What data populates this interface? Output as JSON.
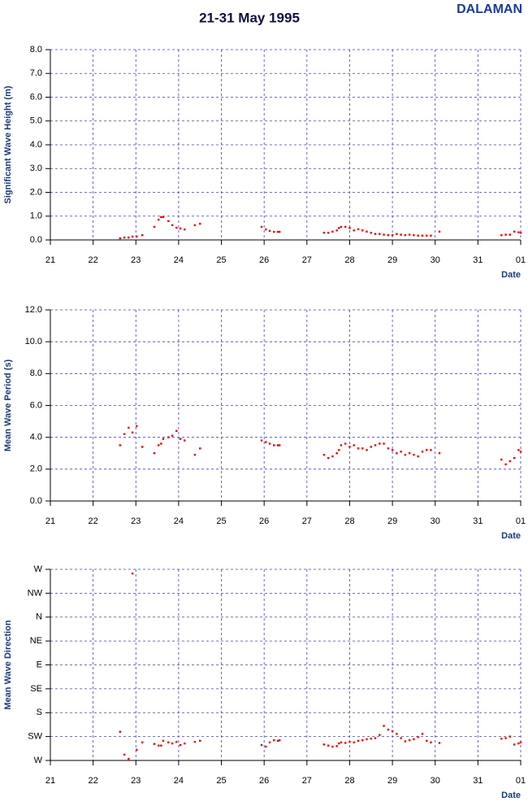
{
  "header": {
    "title": "21-31 May 1995",
    "station": "DALAMAN"
  },
  "chart_data": [
    {
      "type": "scatter",
      "ylabel": "Significant Wave Height (m)",
      "xlabel": "Date",
      "color": "#ee0000",
      "xlim": [
        21,
        32
      ],
      "xticks": [
        21,
        22,
        23,
        24,
        25,
        26,
        27,
        28,
        29,
        30,
        31,
        {
          "value": 32,
          "label": "01"
        }
      ],
      "ylim": [
        0,
        8
      ],
      "yticks": [
        {
          "value": 0,
          "label": "0.0"
        },
        {
          "value": 1,
          "label": "1.0"
        },
        {
          "value": 2,
          "label": "2.0"
        },
        {
          "value": 3,
          "label": "3.0"
        },
        {
          "value": 4,
          "label": "4.0"
        },
        {
          "value": 5,
          "label": "5.0"
        },
        {
          "value": 6,
          "label": "6.0"
        },
        {
          "value": 7,
          "label": "7.0"
        },
        {
          "value": 8,
          "label": "8.0"
        }
      ],
      "grid": true,
      "x": [
        22.63,
        22.73,
        22.83,
        22.92,
        23.02,
        23.15,
        23.43,
        23.53,
        23.59,
        23.64,
        23.76,
        23.85,
        23.95,
        24.04,
        24.14,
        24.38,
        24.5,
        25.94,
        26.04,
        26.13,
        26.23,
        26.32,
        26.36,
        27.4,
        27.5,
        27.6,
        27.7,
        27.75,
        27.8,
        27.9,
        28.0,
        28.1,
        28.2,
        28.3,
        28.4,
        28.5,
        28.6,
        28.7,
        28.8,
        28.9,
        29.0,
        29.1,
        29.2,
        29.3,
        29.4,
        29.5,
        29.6,
        29.7,
        29.8,
        29.9,
        30.1,
        31.55,
        31.65,
        31.75,
        31.85,
        31.95,
        32.0
      ],
      "values": [
        0.07,
        0.1,
        0.1,
        0.14,
        0.14,
        0.2,
        0.55,
        0.85,
        0.96,
        0.96,
        0.79,
        0.62,
        0.51,
        0.48,
        0.44,
        0.62,
        0.68,
        0.55,
        0.44,
        0.38,
        0.34,
        0.34,
        0.34,
        0.3,
        0.3,
        0.35,
        0.4,
        0.5,
        0.55,
        0.55,
        0.5,
        0.4,
        0.45,
        0.4,
        0.35,
        0.3,
        0.25,
        0.25,
        0.22,
        0.2,
        0.2,
        0.25,
        0.22,
        0.2,
        0.22,
        0.2,
        0.18,
        0.18,
        0.18,
        0.18,
        0.35,
        0.2,
        0.22,
        0.22,
        0.35,
        0.32,
        0.3
      ]
    },
    {
      "type": "scatter",
      "ylabel": "Mean Wave Period (s)",
      "xlabel": "Date",
      "color": "#ee0000",
      "xlim": [
        21,
        32
      ],
      "xticks": [
        21,
        22,
        23,
        24,
        25,
        26,
        27,
        28,
        29,
        30,
        31,
        {
          "value": 32,
          "label": "01"
        }
      ],
      "ylim": [
        0,
        12
      ],
      "yticks": [
        {
          "value": 0,
          "label": "0.0"
        },
        {
          "value": 2,
          "label": "2.0"
        },
        {
          "value": 4,
          "label": "4.0"
        },
        {
          "value": 6,
          "label": "6.0"
        },
        {
          "value": 8,
          "label": "8.0"
        },
        {
          "value": 10,
          "label": "10.0"
        },
        {
          "value": 12,
          "label": "12.0"
        }
      ],
      "grid": true,
      "x": [
        22.63,
        22.73,
        22.83,
        22.92,
        23.02,
        23.15,
        23.43,
        23.53,
        23.59,
        23.64,
        23.76,
        23.85,
        23.95,
        24.04,
        24.14,
        24.38,
        24.5,
        25.94,
        26.04,
        26.13,
        26.23,
        26.32,
        26.36,
        27.4,
        27.5,
        27.6,
        27.7,
        27.75,
        27.8,
        27.9,
        28.0,
        28.1,
        28.2,
        28.3,
        28.4,
        28.5,
        28.6,
        28.7,
        28.8,
        28.9,
        29.0,
        29.1,
        29.2,
        29.3,
        29.4,
        29.5,
        29.6,
        29.7,
        29.8,
        29.9,
        30.1,
        31.55,
        31.65,
        31.75,
        31.85,
        31.95,
        32.0
      ],
      "values": [
        3.5,
        4.2,
        4.6,
        4.3,
        4.7,
        3.4,
        3.0,
        3.5,
        3.6,
        3.9,
        4.0,
        4.1,
        4.4,
        3.9,
        3.8,
        2.9,
        3.3,
        3.8,
        3.7,
        3.6,
        3.5,
        3.5,
        3.5,
        2.9,
        2.7,
        2.8,
        3.0,
        3.2,
        3.5,
        3.6,
        3.4,
        3.5,
        3.3,
        3.3,
        3.2,
        3.4,
        3.5,
        3.6,
        3.6,
        3.3,
        3.2,
        3.0,
        3.1,
        2.9,
        3.0,
        2.9,
        2.8,
        3.1,
        3.2,
        3.2,
        3.0,
        2.6,
        2.3,
        2.5,
        2.7,
        3.2,
        3.1
      ]
    },
    {
      "type": "scatter",
      "ylabel": "Mean Wave Direction",
      "xlabel": "Date",
      "color": "#ee0000",
      "xlim": [
        21,
        32
      ],
      "xticks": [
        21,
        22,
        23,
        24,
        25,
        26,
        27,
        28,
        29,
        30,
        31,
        {
          "value": 32,
          "label": "01"
        }
      ],
      "ylim": [
        270,
        -90
      ],
      "yticks": [
        {
          "value": 270,
          "label": "W"
        },
        {
          "value": 225,
          "label": "SW"
        },
        {
          "value": 180,
          "label": "S"
        },
        {
          "value": 135,
          "label": "SE"
        },
        {
          "value": 90,
          "label": "E"
        },
        {
          "value": 45,
          "label": "NE"
        },
        {
          "value": 0,
          "label": "N"
        },
        {
          "value": -45,
          "label": "NW"
        },
        {
          "value": -90,
          "label": "W"
        }
      ],
      "grid": true,
      "x": [
        22.63,
        22.73,
        22.83,
        22.92,
        23.02,
        23.15,
        23.43,
        23.53,
        23.59,
        23.64,
        23.76,
        23.85,
        23.95,
        24.04,
        24.14,
        24.38,
        24.5,
        25.94,
        26.04,
        26.13,
        26.23,
        26.32,
        26.36,
        27.4,
        27.5,
        27.6,
        27.7,
        27.75,
        27.8,
        27.9,
        28.0,
        28.1,
        28.2,
        28.3,
        28.4,
        28.5,
        28.6,
        28.7,
        28.8,
        28.9,
        29.0,
        29.1,
        29.2,
        29.3,
        29.4,
        29.5,
        29.6,
        29.7,
        29.8,
        29.9,
        30.1,
        31.55,
        31.65,
        31.75,
        31.85,
        31.95,
        32.0
      ],
      "values": [
        216,
        259,
        267,
        -82,
        250,
        236,
        239,
        242,
        242,
        233,
        236,
        238,
        235,
        241,
        238,
        235,
        233,
        241,
        244,
        236,
        232,
        233,
        232,
        240,
        242,
        244,
        243,
        238,
        236,
        237,
        235,
        236,
        233,
        232,
        230,
        229,
        228,
        222,
        205,
        212,
        215,
        220,
        228,
        234,
        232,
        230,
        226,
        220,
        233,
        236,
        237,
        229,
        228,
        225,
        240,
        238,
        236
      ]
    }
  ]
}
